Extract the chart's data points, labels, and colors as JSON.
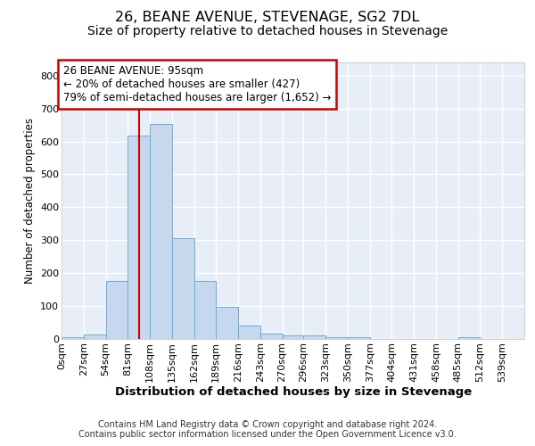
{
  "title": "26, BEANE AVENUE, STEVENAGE, SG2 7DL",
  "subtitle": "Size of property relative to detached houses in Stevenage",
  "xlabel": "Distribution of detached houses by size in Stevenage",
  "ylabel": "Number of detached properties",
  "bar_color": "#c5d8ee",
  "bar_edge_color": "#6baed6",
  "background_color": "#e8eef8",
  "grid_color": "#ffffff",
  "red_line_x": 95,
  "annotation_line1": "26 BEANE AVENUE: 95sqm",
  "annotation_line2": "← 20% of detached houses are smaller (427)",
  "annotation_line3": "79% of semi-detached houses are larger (1,652) →",
  "annotation_box_color": "#ffffff",
  "annotation_box_edge": "#cc0000",
  "categories": [
    "0sqm",
    "27sqm",
    "54sqm",
    "81sqm",
    "108sqm",
    "135sqm",
    "162sqm",
    "189sqm",
    "216sqm",
    "243sqm",
    "270sqm",
    "296sqm",
    "323sqm",
    "350sqm",
    "377sqm",
    "404sqm",
    "431sqm",
    "458sqm",
    "485sqm",
    "512sqm",
    "539sqm"
  ],
  "bin_edges": [
    0,
    27,
    54,
    81,
    108,
    135,
    162,
    189,
    216,
    243,
    270,
    296,
    323,
    350,
    377,
    404,
    431,
    458,
    485,
    512,
    539,
    566
  ],
  "values": [
    5,
    13,
    175,
    618,
    653,
    305,
    175,
    97,
    40,
    15,
    12,
    10,
    5,
    5,
    0,
    0,
    0,
    0,
    5,
    0,
    0
  ],
  "ylim": [
    0,
    840
  ],
  "yticks": [
    0,
    100,
    200,
    300,
    400,
    500,
    600,
    700,
    800
  ],
  "footer_text": "Contains HM Land Registry data © Crown copyright and database right 2024.\nContains public sector information licensed under the Open Government Licence v3.0.",
  "title_fontsize": 11.5,
  "subtitle_fontsize": 10,
  "xlabel_fontsize": 9.5,
  "ylabel_fontsize": 8.5,
  "tick_fontsize": 8,
  "annotation_fontsize": 8.5,
  "footer_fontsize": 7
}
